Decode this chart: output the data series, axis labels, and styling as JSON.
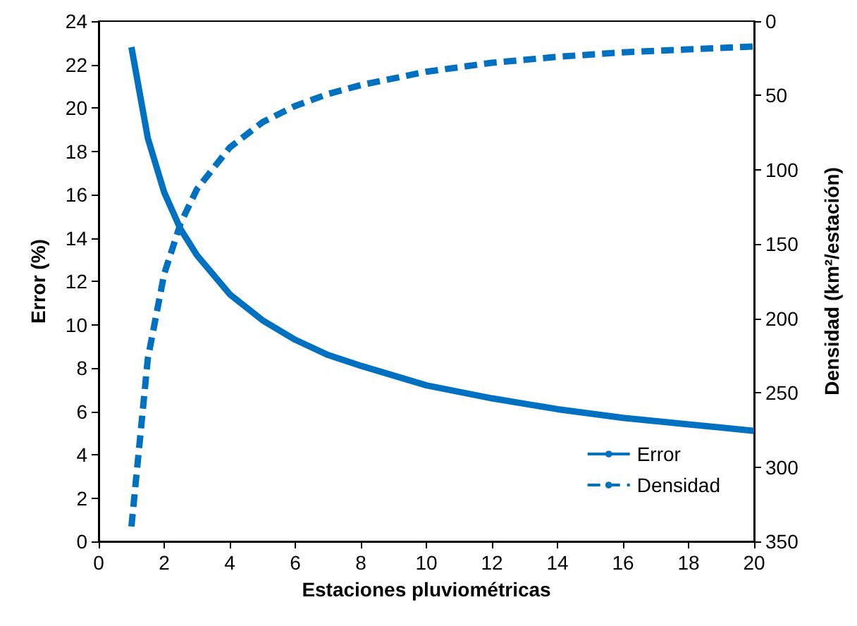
{
  "chart_data": {
    "type": "line",
    "xlabel": "Estaciones pluviométricas",
    "ylabel": "Error (%)",
    "y2label": "Densidad (km²/estación)",
    "x": [
      1,
      1.5,
      2,
      2.5,
      3,
      4,
      5,
      6,
      7,
      8,
      10,
      12,
      14,
      16,
      18,
      20
    ],
    "series": [
      {
        "name": "Error",
        "color": "#0070c0",
        "line_style": "solid",
        "values": [
          22.8,
          18.6,
          16.1,
          14.4,
          13.2,
          11.4,
          10.2,
          9.3,
          8.6,
          8.1,
          7.2,
          6.6,
          6.1,
          5.7,
          5.4,
          5.1
        ]
      },
      {
        "name": "Densidad",
        "color": "#0070c0",
        "line_style": "dashed",
        "axis": "y2",
        "values": [
          340,
          227,
          170,
          136,
          113,
          85,
          68,
          57,
          49,
          43,
          34,
          28,
          24,
          21,
          19,
          17
        ]
      }
    ],
    "xlim": [
      0,
      20
    ],
    "xticks": [
      0,
      2,
      4,
      6,
      8,
      10,
      12,
      14,
      16,
      18,
      20
    ],
    "ylim": [
      0,
      24
    ],
    "yticks": [
      0,
      2,
      4,
      6,
      8,
      10,
      12,
      14,
      16,
      18,
      20,
      22,
      24
    ],
    "y2lim": [
      350,
      0
    ],
    "y2ticks": [
      0,
      50,
      100,
      150,
      200,
      250,
      300,
      350
    ],
    "grid": false,
    "legend": "bottom right",
    "marker": "none"
  }
}
